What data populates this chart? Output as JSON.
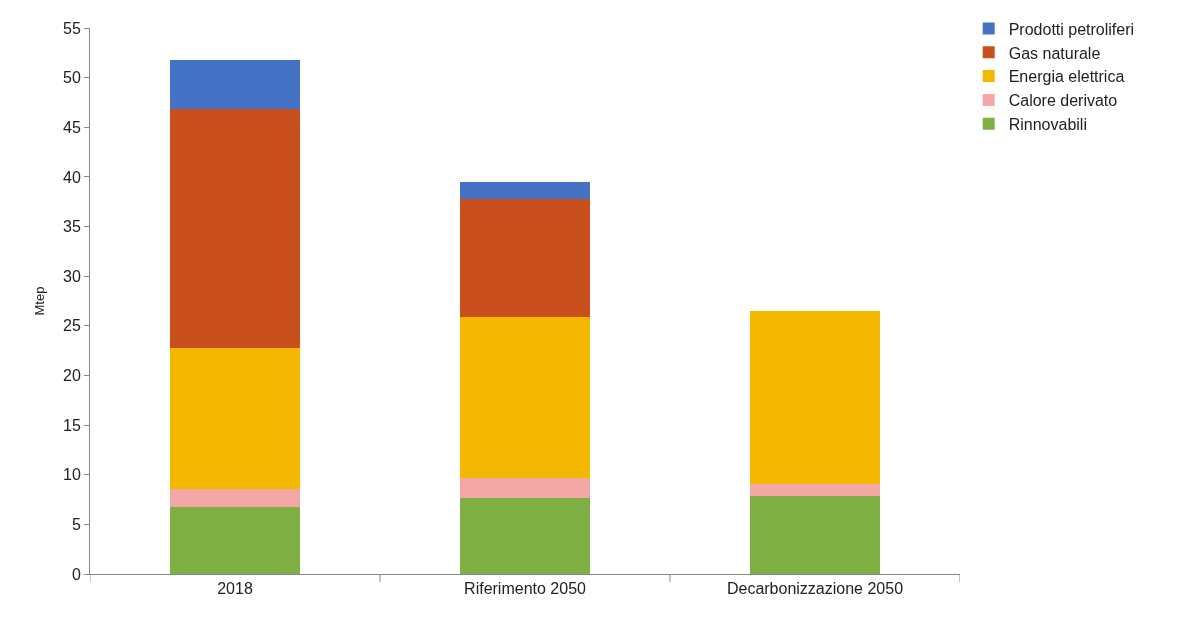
{
  "chart_data": {
    "type": "bar",
    "stacked": true,
    "ylabel": "Mtep",
    "categories": [
      "2018",
      "Riferimento 2050",
      "Decarbonizzazione 2050"
    ],
    "series": [
      {
        "name": "Rinnovabili",
        "color": "#7eb043",
        "values": [
          6.7,
          7.7,
          7.9
        ]
      },
      {
        "name": "Calore derivato",
        "color": "#f4a7a7",
        "values": [
          1.9,
          2.0,
          1.2
        ]
      },
      {
        "name": "Energia elettrica",
        "color": "#f5b800",
        "values": [
          14.2,
          16.2,
          17.4
        ]
      },
      {
        "name": "Gas naturale",
        "color": "#c9501d",
        "values": [
          24.0,
          11.9,
          0
        ]
      },
      {
        "name": "Prodotti petroliferi",
        "color": "#4472c4",
        "values": [
          5.0,
          1.7,
          0
        ]
      }
    ],
    "ylim": [
      0,
      55
    ],
    "yticks": [
      0,
      5,
      10,
      15,
      20,
      25,
      30,
      35,
      40,
      45,
      50,
      55
    ],
    "legend": "top right"
  }
}
